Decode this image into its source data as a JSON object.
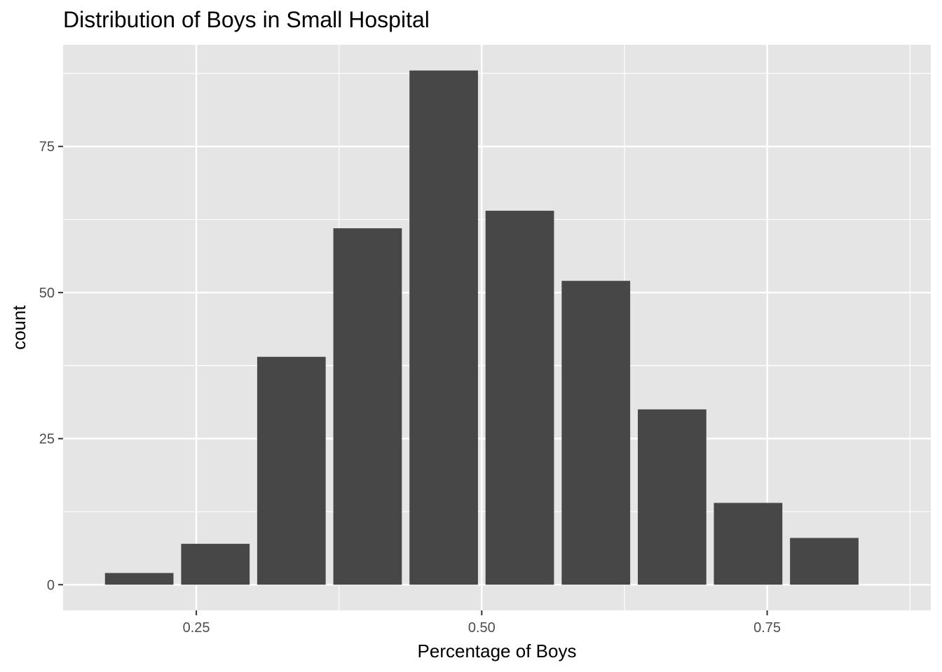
{
  "chart_data": {
    "type": "bar",
    "title": "Distribution of Boys in Small Hospital",
    "xlabel": "Percentage of Boys",
    "ylabel": "count",
    "bins": [
      {
        "x": 0.2,
        "count": 2
      },
      {
        "x": 0.2667,
        "count": 7
      },
      {
        "x": 0.3333,
        "count": 39
      },
      {
        "x": 0.4,
        "count": 61
      },
      {
        "x": 0.4667,
        "count": 88
      },
      {
        "x": 0.5333,
        "count": 64
      },
      {
        "x": 0.6,
        "count": 52
      },
      {
        "x": 0.6667,
        "count": 30
      },
      {
        "x": 0.7333,
        "count": 14
      },
      {
        "x": 0.8,
        "count": 8
      }
    ],
    "bar_width": 0.06,
    "xlim": [
      0.1333,
      0.8933
    ],
    "ylim": [
      -4.4,
      92.4
    ],
    "x_ticks": [
      {
        "value": 0.25,
        "label": "0.25"
      },
      {
        "value": 0.5,
        "label": "0.50"
      },
      {
        "value": 0.75,
        "label": "0.75"
      }
    ],
    "y_ticks": [
      {
        "value": 0,
        "label": "0"
      },
      {
        "value": 25,
        "label": "25"
      },
      {
        "value": 50,
        "label": "50"
      },
      {
        "value": 75,
        "label": "75"
      }
    ],
    "x_minor": [
      0.125,
      0.375,
      0.625,
      0.875
    ],
    "y_minor": [
      12.5,
      37.5,
      62.5,
      87.5
    ],
    "grid": true,
    "colors": {
      "panel": "#e5e5e5",
      "grid": "#ffffff",
      "bar": "#474747",
      "tick": "#333333"
    }
  }
}
